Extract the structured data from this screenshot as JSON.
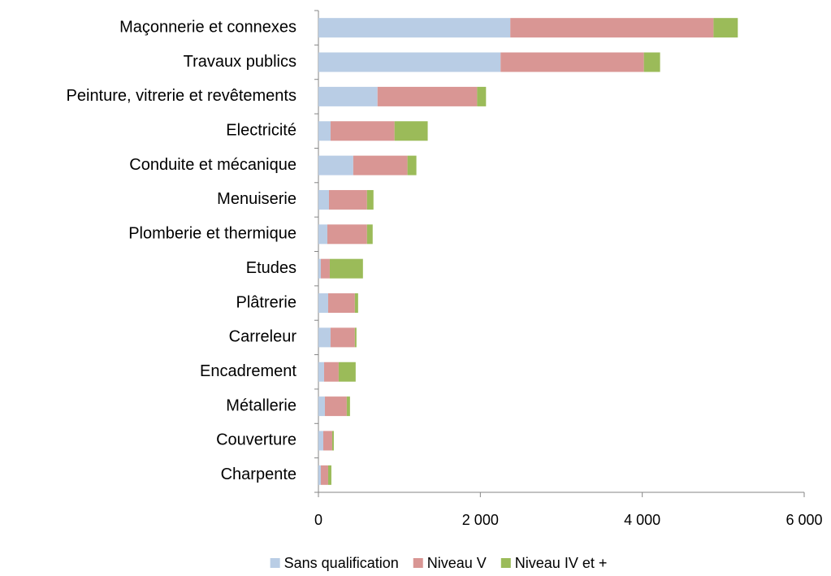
{
  "chart_data": {
    "type": "stacked-barh",
    "categories": [
      "Maçonnerie et connexes",
      "Travaux publics",
      "Peinture, vitrerie et revêtements",
      "Electricité",
      "Conduite et mécanique",
      "Menuiserie",
      "Plomberie et thermique",
      "Etudes",
      "Plâtrerie",
      "Carreleur",
      "Encadrement",
      "Métallerie",
      "Couverture",
      "Charpente"
    ],
    "series": [
      {
        "name": "Sans qualification",
        "color": "#b9cde5",
        "values": [
          2370,
          2250,
          730,
          150,
          430,
          130,
          110,
          30,
          120,
          150,
          70,
          80,
          60,
          30
        ]
      },
      {
        "name": "Niveau V",
        "color": "#d99694",
        "values": [
          2510,
          1770,
          1230,
          790,
          670,
          470,
          490,
          110,
          330,
          300,
          180,
          270,
          110,
          90
        ]
      },
      {
        "name": "Niveau IV et +",
        "color": "#9bbb59",
        "values": [
          300,
          200,
          110,
          410,
          110,
          80,
          70,
          410,
          40,
          20,
          210,
          40,
          20,
          40
        ]
      }
    ],
    "xlim": [
      0,
      6000
    ],
    "xticks": [
      0,
      {
        "value": 2000,
        "label": "2 000"
      },
      {
        "value": 4000,
        "label": "4 000"
      },
      {
        "value": 6000,
        "label": "6 000"
      }
    ],
    "legend": "bottom",
    "grid": false
  }
}
